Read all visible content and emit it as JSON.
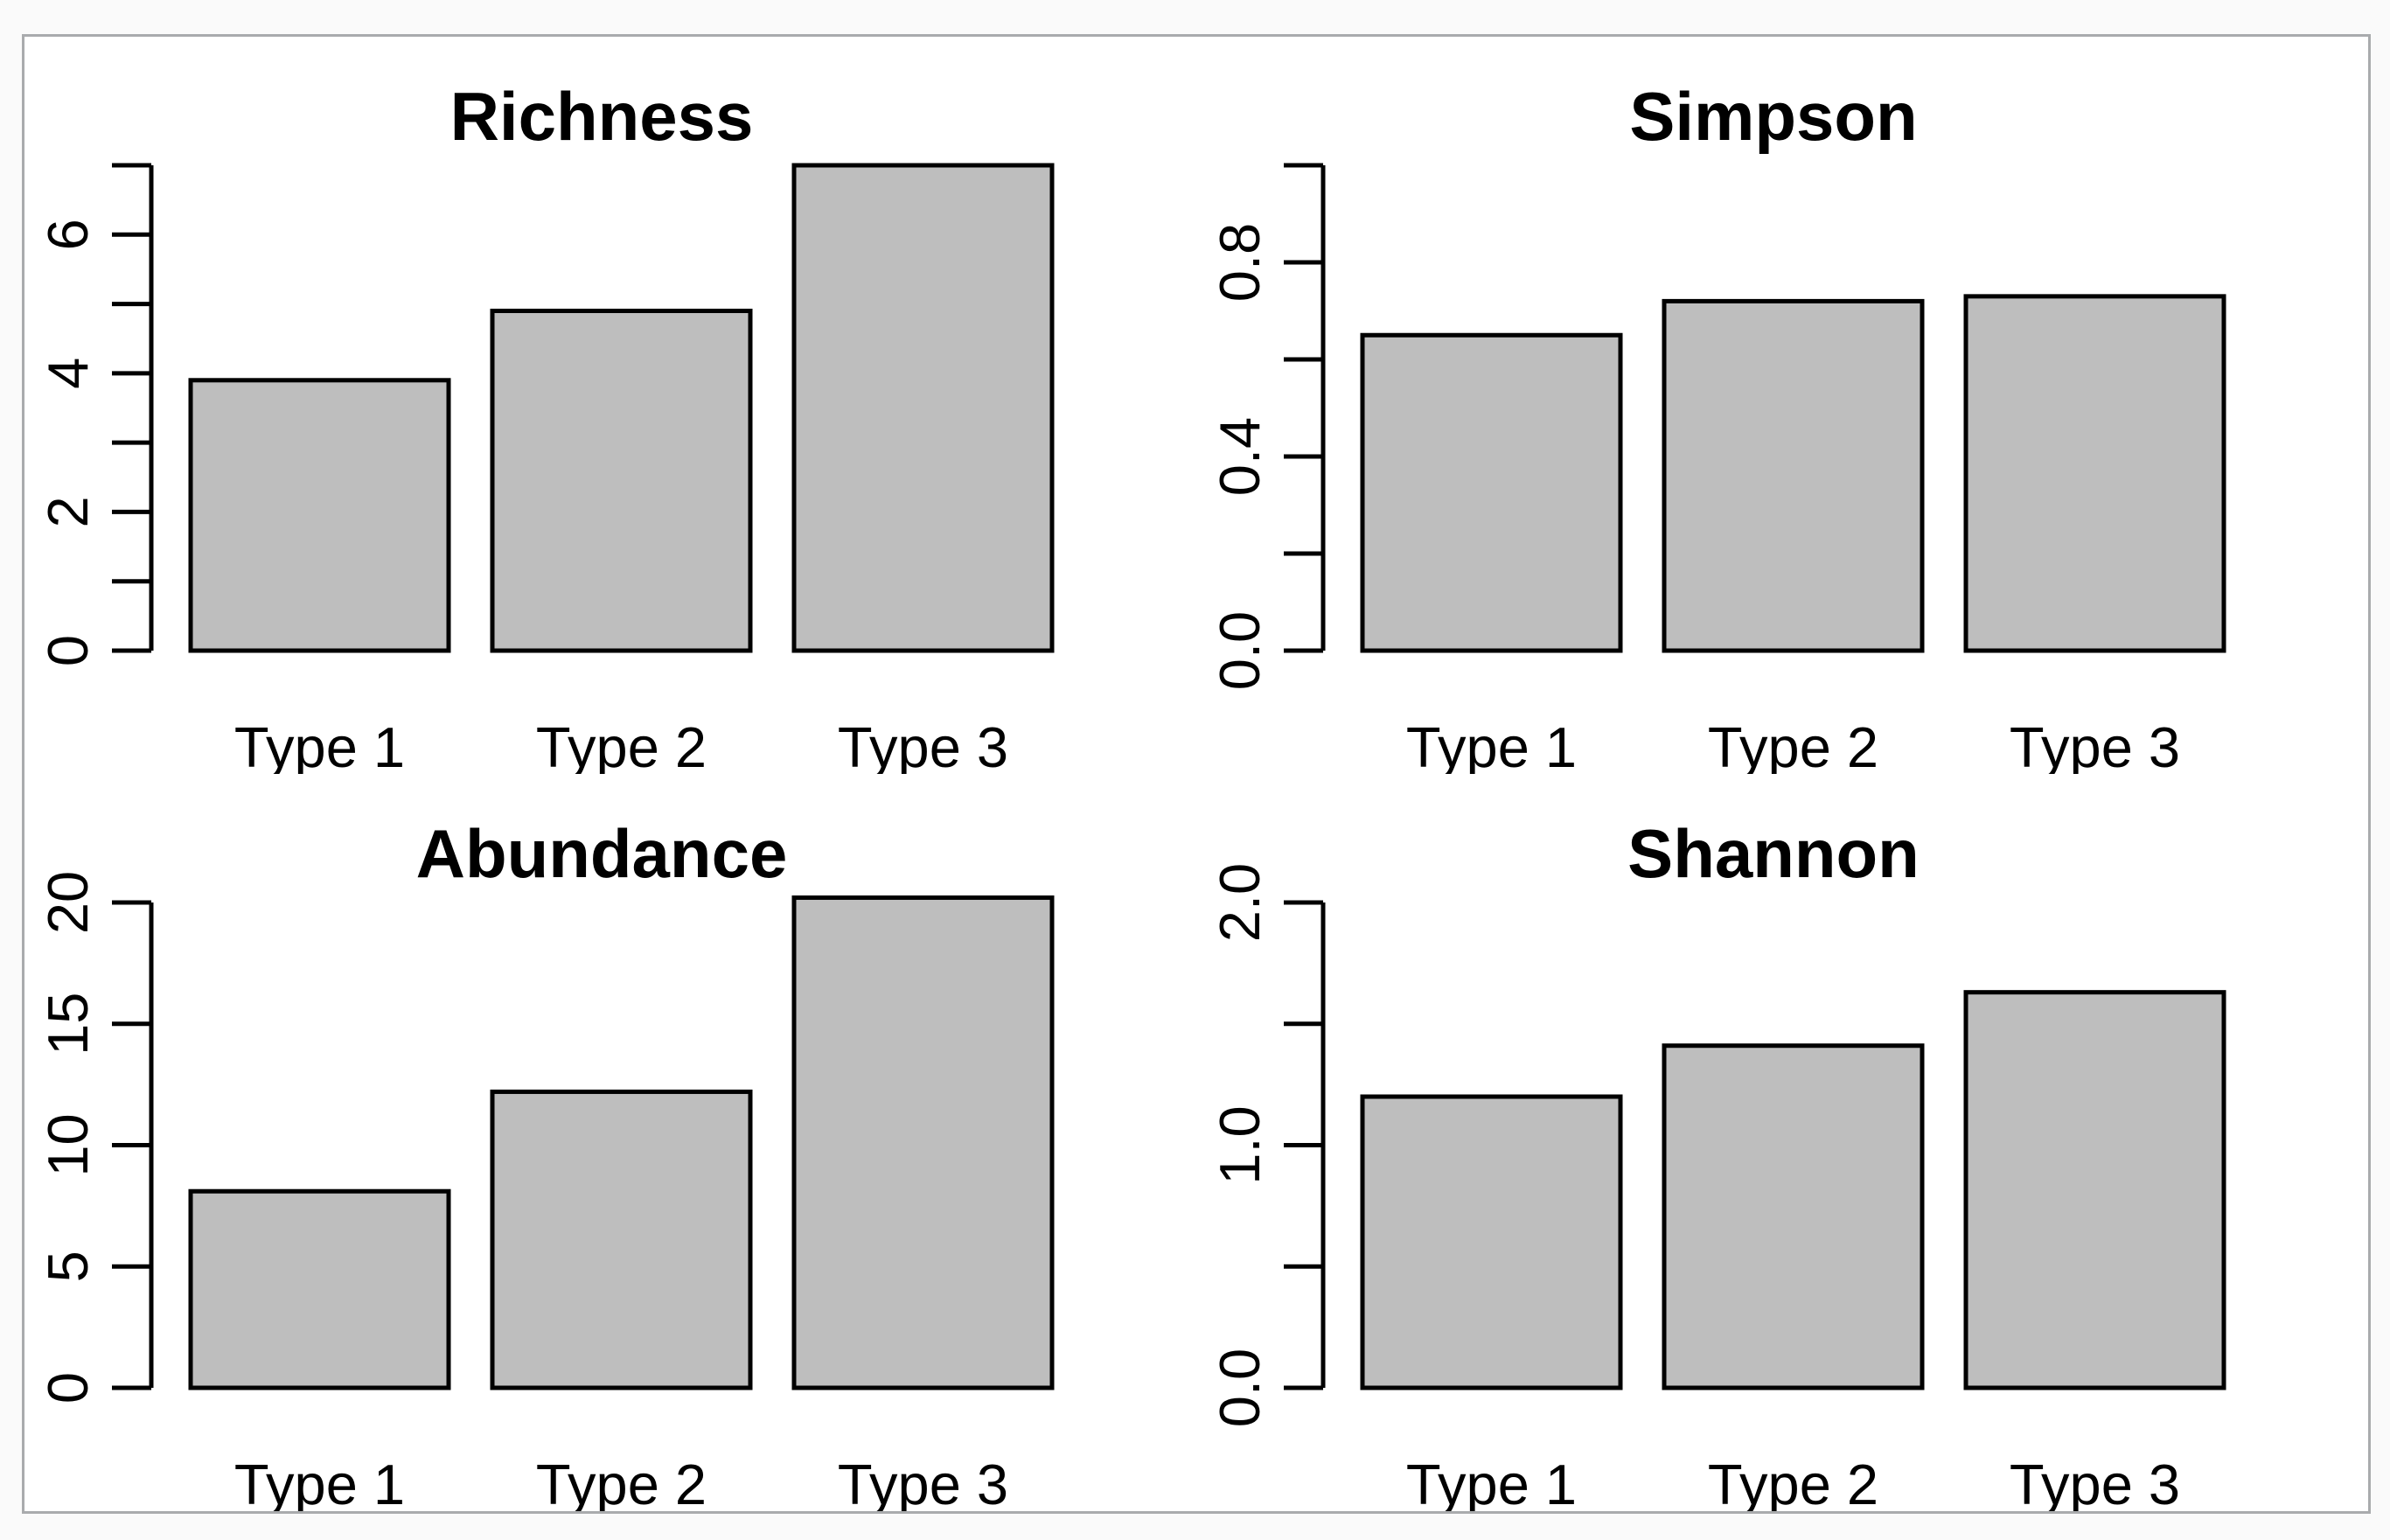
{
  "page": {
    "background_color": "#FAFAFA",
    "figure_background_color": "#FFFFFF",
    "figure_border_color": "#A9ABAD"
  },
  "style": {
    "bar_fill": "#BEBEBE",
    "bar_stroke": "#000000",
    "axis_color": "#000000",
    "text_color": "#000000"
  },
  "chart_data": [
    {
      "id": "richness",
      "type": "bar",
      "title": "Richness",
      "categories": [
        "Type 1",
        "Type 2",
        "Type 3"
      ],
      "values": [
        3.9,
        4.9,
        7.0
      ],
      "ylabel": "",
      "xlabel": "",
      "ylim": [
        0,
        7
      ],
      "grid": false,
      "legend": "none",
      "y_ticks": [
        {
          "v": 0,
          "label": "0"
        },
        {
          "v": 1,
          "label": ""
        },
        {
          "v": 2,
          "label": "2"
        },
        {
          "v": 3,
          "label": ""
        },
        {
          "v": 4,
          "label": "4"
        },
        {
          "v": 5,
          "label": ""
        },
        {
          "v": 6,
          "label": "6"
        },
        {
          "v": 7,
          "label": ""
        }
      ]
    },
    {
      "id": "simpson",
      "type": "bar",
      "title": "Simpson",
      "categories": [
        "Type 1",
        "Type 2",
        "Type 3"
      ],
      "values": [
        0.65,
        0.72,
        0.73
      ],
      "ylabel": "",
      "xlabel": "",
      "ylim": [
        0,
        1.0
      ],
      "grid": false,
      "legend": "none",
      "y_ticks": [
        {
          "v": 0,
          "label": "0.0"
        },
        {
          "v": 0.2,
          "label": ""
        },
        {
          "v": 0.4,
          "label": "0.4"
        },
        {
          "v": 0.6,
          "label": ""
        },
        {
          "v": 0.8,
          "label": "0.8"
        },
        {
          "v": 1.0,
          "label": ""
        }
      ]
    },
    {
      "id": "abundance",
      "type": "bar",
      "title": "Abundance",
      "categories": [
        "Type 1",
        "Type 2",
        "Type 3"
      ],
      "values": [
        8.1,
        12.2,
        20.2
      ],
      "ylabel": "",
      "xlabel": "",
      "ylim": [
        0,
        20
      ],
      "grid": false,
      "legend": "none",
      "y_ticks": [
        {
          "v": 0,
          "label": "0"
        },
        {
          "v": 5,
          "label": "5"
        },
        {
          "v": 10,
          "label": "10"
        },
        {
          "v": 15,
          "label": "15"
        },
        {
          "v": 20,
          "label": "20"
        }
      ]
    },
    {
      "id": "shannon",
      "type": "bar",
      "title": "Shannon",
      "categories": [
        "Type 1",
        "Type 2",
        "Type 3"
      ],
      "values": [
        1.2,
        1.41,
        1.63
      ],
      "ylabel": "",
      "xlabel": "",
      "ylim": [
        0,
        2.0
      ],
      "grid": false,
      "legend": "none",
      "y_ticks": [
        {
          "v": 0,
          "label": "0.0"
        },
        {
          "v": 0.5,
          "label": ""
        },
        {
          "v": 1.0,
          "label": "1.0"
        },
        {
          "v": 1.5,
          "label": ""
        },
        {
          "v": 2.0,
          "label": "2.0"
        }
      ]
    }
  ]
}
